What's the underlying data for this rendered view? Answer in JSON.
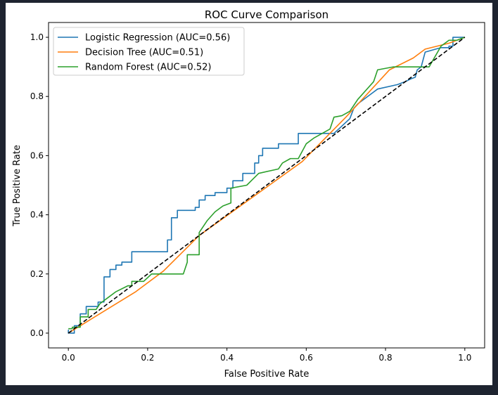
{
  "chart_data": {
    "type": "line",
    "title": "ROC Curve Comparison",
    "xlabel": "False Positive Rate",
    "ylabel": "True Positive Rate",
    "xlim": [
      -0.05,
      1.05
    ],
    "ylim": [
      -0.05,
      1.05
    ],
    "xticks": [
      0.0,
      0.2,
      0.4,
      0.6,
      0.8,
      1.0
    ],
    "yticks": [
      0.0,
      0.2,
      0.4,
      0.6,
      0.8,
      1.0
    ],
    "xtick_labels": [
      "0.0",
      "0.2",
      "0.4",
      "0.6",
      "0.8",
      "1.0"
    ],
    "ytick_labels": [
      "0.0",
      "0.2",
      "0.4",
      "0.6",
      "0.8",
      "1.0"
    ],
    "grid": false,
    "legend_position": "top-left",
    "series": [
      {
        "name": "Logistic Regression (AUC=0.56)",
        "color": "#1f77b4",
        "x": [
          0.0,
          0.0,
          0.0,
          0.015,
          0.015,
          0.03,
          0.03,
          0.045,
          0.045,
          0.075,
          0.075,
          0.09,
          0.09,
          0.105,
          0.105,
          0.12,
          0.12,
          0.135,
          0.135,
          0.16,
          0.16,
          0.18,
          0.2,
          0.25,
          0.25,
          0.26,
          0.26,
          0.275,
          0.275,
          0.32,
          0.32,
          0.33,
          0.33,
          0.345,
          0.345,
          0.37,
          0.37,
          0.4,
          0.4,
          0.415,
          0.415,
          0.44,
          0.44,
          0.47,
          0.47,
          0.48,
          0.48,
          0.49,
          0.49,
          0.53,
          0.53,
          0.58,
          0.58,
          0.63,
          0.67,
          0.67,
          0.69,
          0.69,
          0.71,
          0.71,
          0.72,
          0.72,
          0.73,
          0.73,
          0.755,
          0.755,
          0.78,
          0.78,
          0.83,
          0.83,
          0.85,
          0.85,
          0.865,
          0.865,
          0.875,
          0.875,
          0.88,
          0.88,
          0.89,
          0.89,
          0.9,
          0.9,
          0.94,
          0.96,
          0.96,
          0.97,
          0.97,
          1.0
        ],
        "y": [
          0.0,
          0.01,
          0.0,
          0.0,
          0.025,
          0.025,
          0.065,
          0.065,
          0.09,
          0.09,
          0.105,
          0.105,
          0.19,
          0.19,
          0.215,
          0.215,
          0.23,
          0.23,
          0.24,
          0.24,
          0.275,
          0.275,
          0.275,
          0.275,
          0.315,
          0.315,
          0.39,
          0.39,
          0.415,
          0.415,
          0.425,
          0.425,
          0.45,
          0.45,
          0.465,
          0.465,
          0.475,
          0.475,
          0.49,
          0.49,
          0.515,
          0.515,
          0.54,
          0.54,
          0.575,
          0.575,
          0.6,
          0.6,
          0.625,
          0.625,
          0.64,
          0.64,
          0.675,
          0.675,
          0.675,
          0.675,
          0.7,
          0.7,
          0.725,
          0.725,
          0.76,
          0.76,
          0.775,
          0.775,
          0.8,
          0.8,
          0.825,
          0.825,
          0.84,
          0.84,
          0.85,
          0.85,
          0.86,
          0.86,
          0.865,
          0.865,
          0.89,
          0.89,
          0.9,
          0.9,
          0.95,
          0.95,
          0.965,
          0.965,
          0.97,
          0.97,
          1.0,
          1.0
        ]
      },
      {
        "name": "Decision Tree (AUC=0.51)",
        "color": "#ff7f0e",
        "x": [
          0.0,
          0.17,
          0.24,
          0.33,
          0.59,
          0.7,
          0.81,
          0.87,
          0.9,
          0.96,
          1.0
        ],
        "y": [
          0.0,
          0.14,
          0.21,
          0.33,
          0.58,
          0.73,
          0.89,
          0.93,
          0.96,
          0.98,
          1.0
        ],
        "markers": false
      },
      {
        "name": "Random Forest (AUC=0.52)",
        "color": "#2ca02c",
        "x": [
          0.0,
          0.01,
          0.01,
          0.03,
          0.03,
          0.05,
          0.05,
          0.07,
          0.08,
          0.09,
          0.1,
          0.12,
          0.15,
          0.16,
          0.16,
          0.19,
          0.21,
          0.28,
          0.29,
          0.3,
          0.3,
          0.33,
          0.33,
          0.34,
          0.35,
          0.37,
          0.39,
          0.41,
          0.41,
          0.45,
          0.48,
          0.53,
          0.54,
          0.56,
          0.58,
          0.6,
          0.62,
          0.66,
          0.67,
          0.69,
          0.71,
          0.73,
          0.77,
          0.78,
          0.82,
          0.91,
          0.94,
          0.96,
          0.98,
          1.0
        ],
        "y": [
          0.015,
          0.015,
          0.02,
          0.02,
          0.055,
          0.055,
          0.08,
          0.08,
          0.1,
          0.11,
          0.12,
          0.14,
          0.16,
          0.16,
          0.175,
          0.175,
          0.2,
          0.2,
          0.2,
          0.24,
          0.265,
          0.265,
          0.34,
          0.36,
          0.38,
          0.41,
          0.43,
          0.44,
          0.49,
          0.5,
          0.54,
          0.555,
          0.575,
          0.59,
          0.59,
          0.64,
          0.66,
          0.69,
          0.73,
          0.735,
          0.75,
          0.79,
          0.85,
          0.89,
          0.9,
          0.9,
          0.97,
          0.99,
          0.99,
          1.0
        ]
      }
    ],
    "reference_line": {
      "x": [
        0.0,
        1.0
      ],
      "y": [
        0.0,
        1.0
      ],
      "color": "#000000",
      "style": "dashed"
    }
  }
}
